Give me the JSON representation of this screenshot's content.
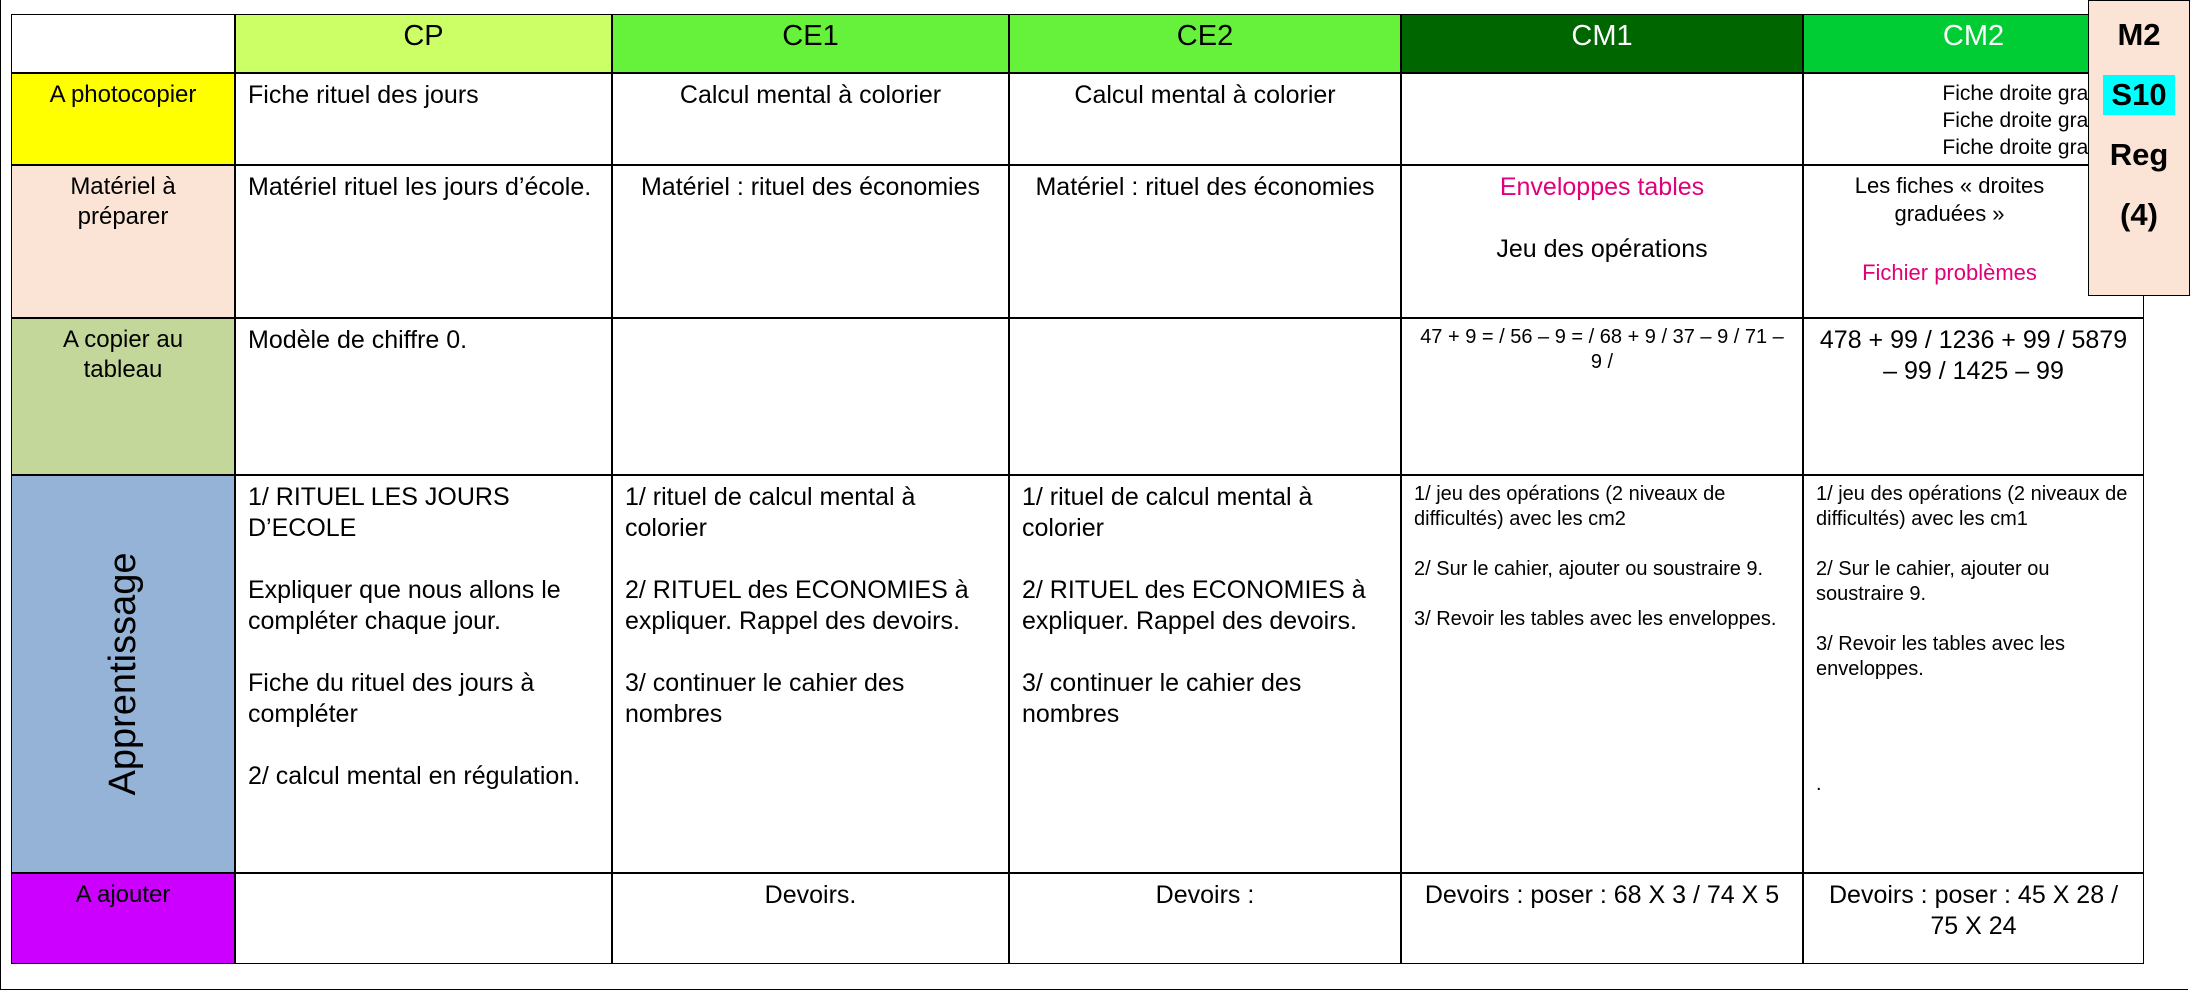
{
  "table": {
    "header": [
      "CP",
      "CE1",
      "CE2",
      "CM1",
      "CM2"
    ],
    "rows": [
      {
        "label": "A  photocopier",
        "cells": [
          [
            "Fiche rituel des jours"
          ],
          [
            "Calcul mental à colorier"
          ],
          [
            "Calcul mental à colorier"
          ],
          [],
          [
            "Fiche droite graduée",
            "Fiche droite graduée",
            "Fiche droite graduée"
          ]
        ]
      },
      {
        "label": "Matériel à préparer",
        "cells": [
          [
            "Matériel rituel les jours d’école."
          ],
          [
            "Matériel : rituel des économies"
          ],
          [
            "Matériel : rituel des économies"
          ],
          [
            "Enveloppes tables",
            "Jeu des opérations"
          ],
          [
            "Les fiches « droites graduées »",
            "Fichier problèmes"
          ]
        ]
      },
      {
        "label": "A copier au tableau",
        "cells": [
          [
            "Modèle de chiffre 0."
          ],
          [],
          [],
          [
            "47 + 9 = / 56 – 9 =  / 68 + 9 / 37 – 9 / 71 – 9 /"
          ],
          [
            "478 + 99 / 1236 + 99 / 5879 – 99 / 1425 – 99"
          ]
        ]
      },
      {
        "label": "Apprentissage",
        "cells": [
          [
            "1/ RITUEL LES JOURS D’ECOLE",
            "Expliquer que nous allons le compléter chaque jour.",
            "Fiche du rituel des jours à compléter",
            "2/ calcul mental en régulation."
          ],
          [
            "1/ rituel de calcul mental à colorier",
            "2/ RITUEL des ECONOMIES à expliquer. Rappel des devoirs.",
            "3/ continuer le cahier des nombres"
          ],
          [
            "1/ rituel de calcul mental à colorier",
            "2/ RITUEL des ECONOMIES à expliquer. Rappel des devoirs.",
            "3/ continuer le cahier des nombres"
          ],
          [
            "1/ jeu des opérations (2 niveaux de difficultés) avec les cm2",
            "2/ Sur le cahier, ajouter ou soustraire 9.",
            "3/ Revoir les tables avec les enveloppes."
          ],
          [
            "1/ jeu des opérations (2 niveaux de difficultés) avec les cm1",
            "2/ Sur le cahier, ajouter ou soustraire 9.",
            "3/ Revoir les tables avec les enveloppes.",
            "."
          ]
        ]
      },
      {
        "label": "A ajouter",
        "cells": [
          [],
          [
            "Devoirs."
          ],
          [
            "Devoirs :"
          ],
          [
            "Devoirs : poser : 68 X 3 / 74 X 5"
          ],
          [
            "Devoirs : poser : 45 X 28  / 75 X 24"
          ]
        ]
      }
    ]
  },
  "side": [
    "M2",
    "S10",
    "Reg",
    "(4)"
  ]
}
